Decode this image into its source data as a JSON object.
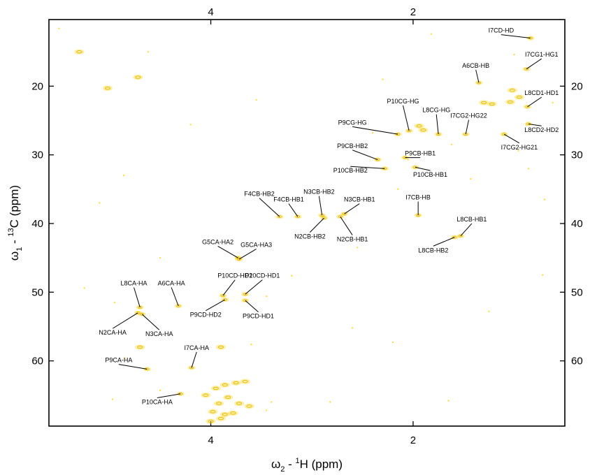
{
  "chart_data": {
    "type": "scatter",
    "title": "",
    "xlabel": {
      "main": "ω",
      "sub": "2",
      "mid": " - ",
      "sup": "1",
      "tail": "H  (ppm)"
    },
    "ylabel": {
      "main": "ω",
      "sub": "1",
      "mid": " - ",
      "sup": "13",
      "tail": "C  (ppm)"
    },
    "xlim": [
      5.6,
      0.5
    ],
    "ylim": [
      10.3,
      69.5
    ],
    "x_reversed": true,
    "x_ticks": [
      4,
      2
    ],
    "y_ticks": [
      20,
      30,
      40,
      50,
      60
    ],
    "grid": false,
    "peak_color": "#ffd200",
    "assigned_peaks": [
      {
        "label": "I7CD-HD",
        "x": 0.84,
        "y": 13.0,
        "lx": 1.13,
        "ly": 12.2
      },
      {
        "label": "I7CG1-HG1",
        "x": 0.88,
        "y": 17.5,
        "lx": 0.73,
        "ly": 15.7
      },
      {
        "label": "A6CB-HB",
        "x": 1.35,
        "y": 19.5,
        "lx": 1.38,
        "ly": 17.3
      },
      {
        "label": "L8CD1-HD1",
        "x": 0.87,
        "y": 23.0,
        "lx": 0.73,
        "ly": 21.3
      },
      {
        "label": "L8CD2-HD2",
        "x": 0.86,
        "y": 25.5,
        "lx": 0.73,
        "ly": 26.7
      },
      {
        "label": "I7CG2-HG22",
        "x": 1.48,
        "y": 27.0,
        "lx": 1.45,
        "ly": 24.6
      },
      {
        "label": "I7CG2-HG21",
        "x": 1.1,
        "y": 27.0,
        "lx": 0.95,
        "ly": 29.2
      },
      {
        "label": "P10CG-HG",
        "x": 2.04,
        "y": 26.5,
        "lx": 2.1,
        "ly": 22.5
      },
      {
        "label": "L8CG-HG",
        "x": 1.75,
        "y": 27.0,
        "lx": 1.77,
        "ly": 23.8
      },
      {
        "label": "P9CG-HG",
        "x": 2.15,
        "y": 27.0,
        "lx": 2.6,
        "ly": 25.6
      },
      {
        "label": "P9CB-HB2",
        "x": 2.35,
        "y": 30.7,
        "lx": 2.6,
        "ly": 29.0
      },
      {
        "label": "P9CB-HB1",
        "x": 2.08,
        "y": 30.4,
        "lx": 1.93,
        "ly": 30.1
      },
      {
        "label": "P10CB-HB2",
        "x": 2.28,
        "y": 32.0,
        "lx": 2.62,
        "ly": 32.6
      },
      {
        "label": "P10CB-HB1",
        "x": 1.98,
        "y": 31.8,
        "lx": 1.83,
        "ly": 33.2
      },
      {
        "label": "F4CB-HB2",
        "x": 3.32,
        "y": 39.0,
        "lx": 3.52,
        "ly": 36.0
      },
      {
        "label": "F4CB-HB1",
        "x": 3.14,
        "y": 39.0,
        "lx": 3.23,
        "ly": 36.8
      },
      {
        "label": "N3CB-HB2",
        "x": 2.9,
        "y": 38.8,
        "lx": 2.93,
        "ly": 35.7
      },
      {
        "label": "N3CB-HB1",
        "x": 2.68,
        "y": 38.6,
        "lx": 2.53,
        "ly": 36.8
      },
      {
        "label": "N2CB-HB2",
        "x": 2.88,
        "y": 39.2,
        "lx": 3.02,
        "ly": 42.2
      },
      {
        "label": "N2CB-HB1",
        "x": 2.72,
        "y": 39.0,
        "lx": 2.6,
        "ly": 42.6
      },
      {
        "label": "I7CB-HB",
        "x": 1.95,
        "y": 38.8,
        "lx": 1.95,
        "ly": 36.5
      },
      {
        "label": "L8CB-HB1",
        "x": 1.53,
        "y": 41.8,
        "lx": 1.42,
        "ly": 39.7
      },
      {
        "label": "L8CB-HB2",
        "x": 1.59,
        "y": 42.0,
        "lx": 1.8,
        "ly": 44.2
      },
      {
        "label": "G5CA-HA2",
        "x": 3.73,
        "y": 45.0,
        "lx": 3.93,
        "ly": 43.0
      },
      {
        "label": "G5CA-HA3",
        "x": 3.72,
        "y": 45.2,
        "lx": 3.55,
        "ly": 43.4
      },
      {
        "label": "L8CA-HA",
        "x": 4.7,
        "y": 52.2,
        "lx": 4.76,
        "ly": 49.0
      },
      {
        "label": "A6CA-HA",
        "x": 4.32,
        "y": 52.0,
        "lx": 4.39,
        "ly": 49.0
      },
      {
        "label": "N2CA-HA",
        "x": 4.72,
        "y": 53.0,
        "lx": 4.97,
        "ly": 56.2
      },
      {
        "label": "N3CA-HA",
        "x": 4.68,
        "y": 53.2,
        "lx": 4.51,
        "ly": 56.4
      },
      {
        "label": "P10CD-HD2",
        "x": 3.88,
        "y": 50.5,
        "lx": 3.76,
        "ly": 47.9
      },
      {
        "label": "P10CD-HD1",
        "x": 3.66,
        "y": 50.3,
        "lx": 3.49,
        "ly": 47.9
      },
      {
        "label": "P9CD-HD2",
        "x": 3.86,
        "y": 51.1,
        "lx": 4.05,
        "ly": 53.6
      },
      {
        "label": "P9CD-HD1",
        "x": 3.66,
        "y": 51.2,
        "lx": 3.53,
        "ly": 53.8
      },
      {
        "label": "I7CA-HA",
        "x": 4.19,
        "y": 61.0,
        "lx": 4.14,
        "ly": 58.4
      },
      {
        "label": "P9CA-HA",
        "x": 4.63,
        "y": 61.2,
        "lx": 4.91,
        "ly": 60.2
      },
      {
        "label": "P10CA-HA",
        "x": 4.3,
        "y": 64.8,
        "lx": 4.53,
        "ly": 66.3
      }
    ],
    "unassigned_peaks": [
      {
        "x": 5.3,
        "y": 15.0
      },
      {
        "x": 4.72,
        "y": 18.7
      },
      {
        "x": 5.02,
        "y": 20.3
      },
      {
        "x": 1.22,
        "y": 22.6
      },
      {
        "x": 1.02,
        "y": 20.6
      },
      {
        "x": 0.95,
        "y": 21.6
      },
      {
        "x": 1.94,
        "y": 25.8
      },
      {
        "x": 1.9,
        "y": 26.4
      },
      {
        "x": 1.04,
        "y": 22.3
      },
      {
        "x": 1.3,
        "y": 22.4
      },
      {
        "x": 4.7,
        "y": 58.0
      },
      {
        "x": 3.9,
        "y": 58.0
      },
      {
        "x": 3.86,
        "y": 63.5
      },
      {
        "x": 3.75,
        "y": 63.2
      },
      {
        "x": 3.95,
        "y": 64.0
      },
      {
        "x": 3.66,
        "y": 63.0
      },
      {
        "x": 3.83,
        "y": 65.3
      },
      {
        "x": 3.72,
        "y": 66.2
      },
      {
        "x": 3.92,
        "y": 66.2
      },
      {
        "x": 3.98,
        "y": 67.4
      },
      {
        "x": 3.86,
        "y": 67.8
      },
      {
        "x": 4.0,
        "y": 68.8
      },
      {
        "x": 3.62,
        "y": 66.6
      },
      {
        "x": 3.78,
        "y": 67.6
      },
      {
        "x": 3.9,
        "y": 68.4
      },
      {
        "x": 4.05,
        "y": 65.0
      }
    ],
    "noise_points": [
      {
        "x": 5.5,
        "y": 11.6
      },
      {
        "x": 4.62,
        "y": 15.0
      },
      {
        "x": 4.2,
        "y": 25.6
      },
      {
        "x": 3.55,
        "y": 22.0
      },
      {
        "x": 2.3,
        "y": 19.0
      },
      {
        "x": 5.1,
        "y": 37.0
      },
      {
        "x": 4.86,
        "y": 33.0
      },
      {
        "x": 4.5,
        "y": 45.0
      },
      {
        "x": 3.2,
        "y": 47.6
      },
      {
        "x": 2.55,
        "y": 43.5
      },
      {
        "x": 2.15,
        "y": 35.0
      },
      {
        "x": 1.43,
        "y": 33.5
      },
      {
        "x": 0.96,
        "y": 29.4
      },
      {
        "x": 0.7,
        "y": 36.5
      },
      {
        "x": 0.72,
        "y": 47.5
      },
      {
        "x": 1.25,
        "y": 52.8
      },
      {
        "x": 2.2,
        "y": 57.3
      },
      {
        "x": 4.85,
        "y": 59.6
      },
      {
        "x": 4.97,
        "y": 65.6
      },
      {
        "x": 3.45,
        "y": 67.2
      },
      {
        "x": 3.4,
        "y": 66.0
      },
      {
        "x": 2.6,
        "y": 55.2
      },
      {
        "x": 3.6,
        "y": 57.6
      },
      {
        "x": 2.05,
        "y": 30.7
      },
      {
        "x": 1.62,
        "y": 28.5
      },
      {
        "x": 2.4,
        "y": 26.8
      },
      {
        "x": 3.45,
        "y": 50.6
      },
      {
        "x": 4.5,
        "y": 64.3
      },
      {
        "x": 1.82,
        "y": 12.4
      },
      {
        "x": 1.0,
        "y": 15.4
      },
      {
        "x": 0.62,
        "y": 22.4
      },
      {
        "x": 0.86,
        "y": 32.0
      },
      {
        "x": 5.25,
        "y": 49.4
      },
      {
        "x": 4.95,
        "y": 51.5
      },
      {
        "x": 2.82,
        "y": 66.0
      },
      {
        "x": 1.65,
        "y": 65.8
      }
    ]
  }
}
